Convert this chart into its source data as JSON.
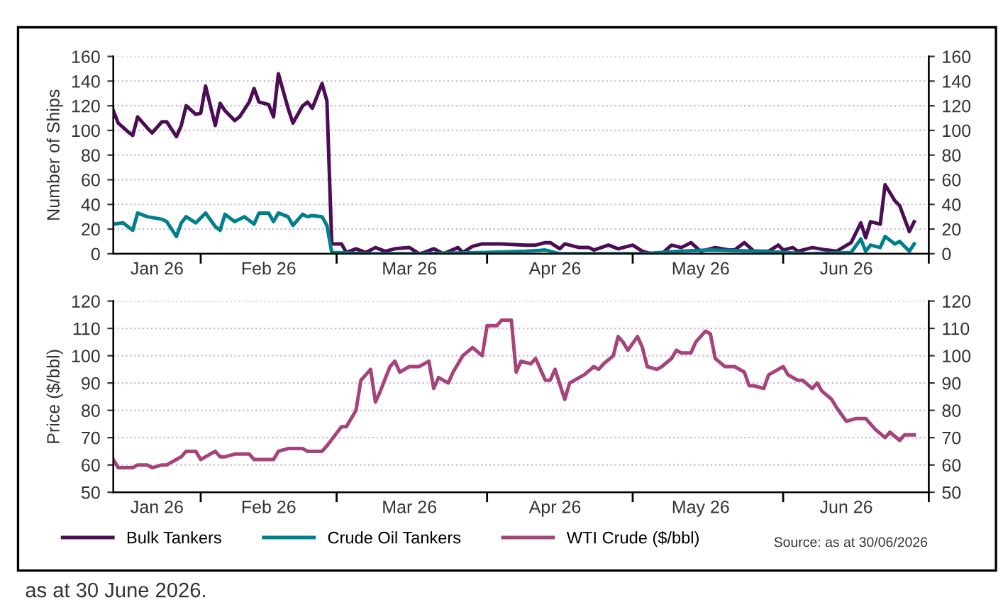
{
  "chart_data": [
    {
      "type": "line",
      "ylabel": "Number of Ships",
      "xlim": [
        "2026-01-14",
        "2026-07-01"
      ],
      "xticks": [
        {
          "value": "2026-01-23",
          "label": "Jan 26"
        },
        {
          "value": "2026-02-01",
          "label": null
        },
        {
          "value": "2026-02-15",
          "label": "Feb 26"
        },
        {
          "value": "2026-03-01",
          "label": null
        },
        {
          "value": "2026-03-16",
          "label": "Mar 26"
        },
        {
          "value": "2026-04-01",
          "label": null
        },
        {
          "value": "2026-04-15",
          "label": "Apr 26"
        },
        {
          "value": "2026-05-01",
          "label": null
        },
        {
          "value": "2026-05-15",
          "label": "May 26"
        },
        {
          "value": "2026-06-01",
          "label": null
        },
        {
          "value": "2026-06-14",
          "label": "Jun 26"
        },
        {
          "value": "2026-07-01",
          "label": null
        }
      ],
      "ylim": [
        0,
        160
      ],
      "yticks": [
        0,
        20,
        40,
        60,
        80,
        100,
        120,
        140,
        160
      ],
      "y2lim": [
        0,
        160
      ],
      "y2ticks": [
        0,
        20,
        40,
        60,
        80,
        100,
        120,
        140,
        160
      ],
      "grid": "y",
      "legend": "bottom",
      "line_style": "solid",
      "marker": "none",
      "series": [
        {
          "name": "Bulk Tankers",
          "color": "#4b0e55",
          "x": [
            "2026-01-14",
            "2026-01-15",
            "2026-01-17",
            "2026-01-18",
            "2026-01-19",
            "2026-01-21",
            "2026-01-22",
            "2026-01-24",
            "2026-01-25",
            "2026-01-27",
            "2026-01-28",
            "2026-01-29",
            "2026-01-31",
            "2026-02-01",
            "2026-02-02",
            "2026-02-04",
            "2026-02-05",
            "2026-02-06",
            "2026-02-08",
            "2026-02-09",
            "2026-02-11",
            "2026-02-12",
            "2026-02-13",
            "2026-02-15",
            "2026-02-16",
            "2026-02-17",
            "2026-02-19",
            "2026-02-20",
            "2026-02-22",
            "2026-02-23",
            "2026-02-24",
            "2026-02-26",
            "2026-02-27",
            "2026-02-28",
            "2026-03-02",
            "2026-03-03",
            "2026-03-05",
            "2026-03-07",
            "2026-03-09",
            "2026-03-11",
            "2026-03-13",
            "2026-03-16",
            "2026-03-18",
            "2026-03-19",
            "2026-03-21",
            "2026-03-23",
            "2026-03-26",
            "2026-03-27",
            "2026-03-29",
            "2026-03-31",
            "2026-04-02",
            "2026-04-04",
            "2026-04-09",
            "2026-04-11",
            "2026-04-13",
            "2026-04-14",
            "2026-04-16",
            "2026-04-17",
            "2026-04-20",
            "2026-04-22",
            "2026-04-23",
            "2026-04-26",
            "2026-04-28",
            "2026-05-01",
            "2026-05-03",
            "2026-05-05",
            "2026-05-07",
            "2026-05-09",
            "2026-05-11",
            "2026-05-13",
            "2026-05-15",
            "2026-05-18",
            "2026-05-21",
            "2026-05-22",
            "2026-05-24",
            "2026-05-26",
            "2026-05-29",
            "2026-05-31",
            "2026-06-01",
            "2026-06-03",
            "2026-06-04",
            "2026-06-07",
            "2026-06-10",
            "2026-06-12",
            "2026-06-15",
            "2026-06-17",
            "2026-06-18",
            "2026-06-19",
            "2026-06-21",
            "2026-06-22",
            "2026-06-24",
            "2026-06-25",
            "2026-06-27",
            "2026-06-28"
          ],
          "values": [
            116,
            106,
            99,
            96,
            111,
            102,
            98,
            107,
            107,
            95,
            104,
            120,
            113,
            114,
            136,
            104,
            122,
            116,
            108,
            111,
            123,
            134,
            123,
            121,
            111,
            146,
            118,
            106,
            120,
            123,
            118,
            138,
            124,
            8,
            8,
            1,
            4,
            1,
            5,
            2,
            4,
            5,
            0,
            1,
            4,
            0,
            5,
            1,
            6,
            8,
            8,
            8,
            7,
            7,
            9,
            9,
            4,
            8,
            5,
            5,
            3,
            7,
            4,
            7,
            2,
            0,
            0,
            7,
            5,
            9,
            2,
            5,
            3,
            3,
            9,
            2,
            2,
            7,
            3,
            5,
            2,
            5,
            3,
            2,
            9,
            25,
            13,
            26,
            24,
            56,
            43,
            39,
            18,
            26
          ]
        },
        {
          "name": "Crude Oil Tankers",
          "color": "#00808a",
          "x": [
            "2026-01-14",
            "2026-01-16",
            "2026-01-18",
            "2026-01-19",
            "2026-01-21",
            "2026-01-24",
            "2026-01-25",
            "2026-01-27",
            "2026-01-28",
            "2026-01-29",
            "2026-01-31",
            "2026-02-02",
            "2026-02-04",
            "2026-02-05",
            "2026-02-06",
            "2026-02-08",
            "2026-02-10",
            "2026-02-12",
            "2026-02-13",
            "2026-02-15",
            "2026-02-16",
            "2026-02-17",
            "2026-02-19",
            "2026-02-20",
            "2026-02-22",
            "2026-02-23",
            "2026-02-24",
            "2026-02-26",
            "2026-02-27",
            "2026-02-28",
            "2026-03-07",
            "2026-03-17",
            "2026-04-01",
            "2026-04-09",
            "2026-04-13",
            "2026-04-16",
            "2026-05-03",
            "2026-05-11",
            "2026-05-17",
            "2026-05-27",
            "2026-06-06",
            "2026-06-15",
            "2026-06-17",
            "2026-06-18",
            "2026-06-19",
            "2026-06-21",
            "2026-06-22",
            "2026-06-24",
            "2026-06-25",
            "2026-06-27",
            "2026-06-28"
          ],
          "values": [
            24,
            25,
            19,
            33,
            30,
            28,
            26,
            14,
            25,
            30,
            25,
            33,
            22,
            19,
            32,
            26,
            30,
            24,
            33,
            33,
            26,
            33,
            30,
            23,
            32,
            30,
            31,
            30,
            23,
            1,
            0,
            0,
            1,
            2,
            3,
            0,
            0,
            2,
            3,
            2,
            0,
            1,
            12,
            2,
            7,
            5,
            14,
            8,
            10,
            2,
            8
          ]
        }
      ]
    },
    {
      "type": "line",
      "ylabel": "Price ($/bbl)",
      "xlim": [
        "2026-01-14",
        "2026-07-01"
      ],
      "xticks": [
        {
          "value": "2026-01-23",
          "label": "Jan 26"
        },
        {
          "value": "2026-02-01",
          "label": null
        },
        {
          "value": "2026-02-15",
          "label": "Feb 26"
        },
        {
          "value": "2026-03-01",
          "label": null
        },
        {
          "value": "2026-03-16",
          "label": "Mar 26"
        },
        {
          "value": "2026-04-01",
          "label": null
        },
        {
          "value": "2026-04-15",
          "label": "Apr 26"
        },
        {
          "value": "2026-05-01",
          "label": null
        },
        {
          "value": "2026-05-15",
          "label": "May 26"
        },
        {
          "value": "2026-06-01",
          "label": null
        },
        {
          "value": "2026-06-14",
          "label": "Jun 26"
        },
        {
          "value": "2026-07-01",
          "label": null
        }
      ],
      "ylim": [
        50,
        120
      ],
      "yticks": [
        50,
        60,
        70,
        80,
        90,
        100,
        110,
        120
      ],
      "y2lim": [
        50,
        120
      ],
      "y2ticks": [
        50,
        60,
        70,
        80,
        90,
        100,
        110,
        120
      ],
      "grid": "y",
      "legend": "bottom",
      "line_style": "solid",
      "marker": "none",
      "annotations": [
        "Source: as at 30/06/2026",
        "as at 30 June 2026."
      ],
      "series": [
        {
          "name": "WTI Crude ($/bbl)",
          "color": "#a5447a",
          "x": [
            "2026-01-14",
            "2026-01-15",
            "2026-01-18",
            "2026-01-19",
            "2026-01-21",
            "2026-01-22",
            "2026-01-24",
            "2026-01-25",
            "2026-01-27",
            "2026-01-28",
            "2026-01-29",
            "2026-01-31",
            "2026-02-01",
            "2026-02-02",
            "2026-02-04",
            "2026-02-05",
            "2026-02-06",
            "2026-02-08",
            "2026-02-09",
            "2026-02-11",
            "2026-02-12",
            "2026-02-15",
            "2026-02-16",
            "2026-02-17",
            "2026-02-19",
            "2026-02-22",
            "2026-02-23",
            "2026-02-26",
            "2026-02-27",
            "2026-03-02",
            "2026-03-03",
            "2026-03-05",
            "2026-03-06",
            "2026-03-08",
            "2026-03-09",
            "2026-03-10",
            "2026-03-12",
            "2026-03-13",
            "2026-03-14",
            "2026-03-16",
            "2026-03-18",
            "2026-03-20",
            "2026-03-21",
            "2026-03-22",
            "2026-03-24",
            "2026-03-25",
            "2026-03-27",
            "2026-03-29",
            "2026-03-31",
            "2026-04-01",
            "2026-04-03",
            "2026-04-04",
            "2026-04-06",
            "2026-04-07",
            "2026-04-08",
            "2026-04-10",
            "2026-04-11",
            "2026-04-13",
            "2026-04-14",
            "2026-04-15",
            "2026-04-17",
            "2026-04-18",
            "2026-04-20",
            "2026-04-21",
            "2026-04-23",
            "2026-04-24",
            "2026-04-25",
            "2026-04-27",
            "2026-04-28",
            "2026-04-29",
            "2026-04-30",
            "2026-05-02",
            "2026-05-03",
            "2026-05-04",
            "2026-05-06",
            "2026-05-07",
            "2026-05-09",
            "2026-05-10",
            "2026-05-11",
            "2026-05-13",
            "2026-05-14",
            "2026-05-16",
            "2026-05-17",
            "2026-05-18",
            "2026-05-20",
            "2026-05-22",
            "2026-05-24",
            "2026-05-25",
            "2026-05-26",
            "2026-05-28",
            "2026-05-29",
            "2026-06-01",
            "2026-06-02",
            "2026-06-04",
            "2026-06-05",
            "2026-06-07",
            "2026-06-08",
            "2026-06-09",
            "2026-06-11",
            "2026-06-12",
            "2026-06-14",
            "2026-06-16",
            "2026-06-18",
            "2026-06-19",
            "2026-06-20",
            "2026-06-22",
            "2026-06-23",
            "2026-06-25",
            "2026-06-26",
            "2026-06-28"
          ],
          "values": [
            62,
            59,
            59,
            60,
            60,
            59,
            60,
            60,
            62,
            63,
            65,
            65,
            62,
            63,
            65,
            63,
            63,
            64,
            64,
            64,
            62,
            62,
            62,
            65,
            66,
            66,
            65,
            65,
            67,
            74,
            74,
            80,
            91,
            95,
            83,
            87,
            96,
            98,
            94,
            96,
            96,
            98,
            88,
            92,
            90,
            94,
            100,
            103,
            100,
            111,
            111,
            113,
            113,
            94,
            98,
            97,
            99,
            91,
            91,
            95,
            84,
            90,
            92,
            93,
            96,
            95,
            97,
            100,
            107,
            105,
            102,
            107,
            103,
            96,
            95,
            96,
            99,
            102,
            101,
            101,
            105,
            109,
            108,
            99,
            96,
            96,
            94,
            89,
            89,
            88,
            93,
            96,
            93,
            91,
            91,
            88,
            90,
            87,
            84,
            81,
            76,
            77,
            77,
            75,
            73,
            70,
            72,
            69,
            71,
            71
          ]
        }
      ]
    }
  ]
}
